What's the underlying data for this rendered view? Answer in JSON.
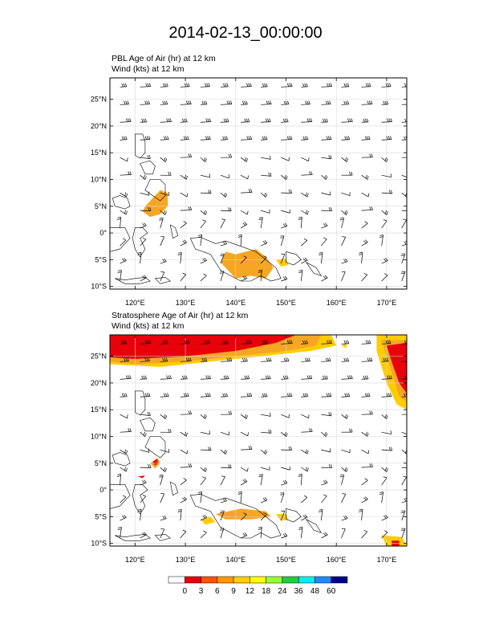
{
  "page": {
    "title": "2014-02-13_00:00:00"
  },
  "chart_data": [
    {
      "type": "heatmap",
      "title_line1": "PBL Age of Air   (hr)     at   12 km",
      "title_line2": "Wind    (kts)     at   12 km",
      "xlim": [
        115,
        174
      ],
      "ylim": [
        -10.5,
        29
      ],
      "x_ticks": [
        {
          "value": 120,
          "label": "120°E"
        },
        {
          "value": 130,
          "label": "130°E"
        },
        {
          "value": 140,
          "label": "140°E"
        },
        {
          "value": 150,
          "label": "150°E"
        },
        {
          "value": 160,
          "label": "160°E"
        },
        {
          "value": 170,
          "label": "170°E"
        }
      ],
      "y_ticks": [
        {
          "value": 25,
          "label": "25°N"
        },
        {
          "value": 20,
          "label": "20°N"
        },
        {
          "value": 15,
          "label": "15°N"
        },
        {
          "value": 10,
          "label": "10°N"
        },
        {
          "value": 5,
          "label": "5°N"
        },
        {
          "value": 0,
          "label": "0°"
        },
        {
          "value": -5,
          "label": "5°S"
        },
        {
          "value": -10,
          "label": "10°S"
        }
      ],
      "regions": [
        {
          "name": "philippines-shading",
          "color": "#f5a623",
          "points": [
            [
              122,
              5
            ],
            [
              123.5,
              6.5
            ],
            [
              125,
              8
            ],
            [
              126.5,
              7.5
            ],
            [
              126.5,
              5
            ],
            [
              125,
              3.5
            ],
            [
              123,
              3
            ],
            [
              121.5,
              4
            ]
          ]
        },
        {
          "name": "new-guinea-shading",
          "color": "#f5a623",
          "points": [
            [
              138,
              -3.5
            ],
            [
              140,
              -4
            ],
            [
              142,
              -3.5
            ],
            [
              144,
              -3
            ],
            [
              146,
              -4.5
            ],
            [
              147.5,
              -6.5
            ],
            [
              146,
              -8.5
            ],
            [
              143,
              -8
            ],
            [
              140,
              -8.5
            ],
            [
              138.5,
              -7
            ],
            [
              137,
              -5.5
            ]
          ]
        },
        {
          "name": "bismarck-shading",
          "color": "#ffcc00",
          "points": [
            [
              148,
              -5
            ],
            [
              150,
              -4.8
            ],
            [
              150.5,
              -6
            ],
            [
              149,
              -6.3
            ]
          ]
        }
      ]
    },
    {
      "type": "heatmap",
      "title_line1": "Stratosphere Age of Air   (hr)     at   12 km",
      "title_line2": "Wind    (kts)     at   12 km",
      "xlim": [
        115,
        174
      ],
      "ylim": [
        -10.5,
        29
      ],
      "x_ticks": [
        {
          "value": 120,
          "label": "120°E"
        },
        {
          "value": 130,
          "label": "130°E"
        },
        {
          "value": 140,
          "label": "140°E"
        },
        {
          "value": 150,
          "label": "150°E"
        },
        {
          "value": 160,
          "label": "160°E"
        },
        {
          "value": 170,
          "label": "170°E"
        }
      ],
      "y_ticks": [
        {
          "value": 25,
          "label": "25°N"
        },
        {
          "value": 20,
          "label": "20°N"
        },
        {
          "value": 15,
          "label": "15°N"
        },
        {
          "value": 10,
          "label": "10°N"
        },
        {
          "value": 5,
          "label": "5°N"
        },
        {
          "value": 0,
          "label": "0°"
        },
        {
          "value": -5,
          "label": "5°S"
        },
        {
          "value": -10,
          "label": "10°S"
        }
      ],
      "regions": [
        {
          "name": "jet-yellow-band",
          "color": "#ffcc00",
          "points": [
            [
              115,
              29
            ],
            [
              159,
              29
            ],
            [
              160,
              27
            ],
            [
              155,
              26
            ],
            [
              145,
              25
            ],
            [
              135,
              24
            ],
            [
              125,
              23
            ],
            [
              115,
              23.5
            ]
          ]
        },
        {
          "name": "jet-orange-band",
          "color": "#f5a623",
          "points": [
            [
              115,
              29
            ],
            [
              157,
              29
            ],
            [
              156,
              27
            ],
            [
              150,
              26
            ],
            [
              140,
              25
            ],
            [
              130,
              24
            ],
            [
              120,
              23.5
            ],
            [
              115,
              24
            ]
          ]
        },
        {
          "name": "jet-red-core",
          "color": "#e8000b",
          "points": [
            [
              115,
              29
            ],
            [
              152,
              29
            ],
            [
              148,
              27.5
            ],
            [
              140,
              26
            ],
            [
              130,
              25
            ],
            [
              120,
              24.5
            ],
            [
              115,
              24.8
            ]
          ]
        },
        {
          "name": "east-yellow-band",
          "color": "#ffcc00",
          "points": [
            [
              168,
              29
            ],
            [
              174,
              29
            ],
            [
              174,
              15
            ],
            [
              172,
              16
            ],
            [
              170,
              20
            ],
            [
              168,
              26
            ]
          ]
        },
        {
          "name": "east-orange-band",
          "color": "#f5a623",
          "points": [
            [
              169,
              28
            ],
            [
              174,
              28
            ],
            [
              174,
              16.5
            ],
            [
              172.5,
              17.5
            ],
            [
              171,
              22
            ]
          ]
        },
        {
          "name": "east-red-core",
          "color": "#e8000b",
          "points": [
            [
              170,
              27
            ],
            [
              174,
              27.5
            ],
            [
              174,
              18
            ],
            [
              172.5,
              20
            ],
            [
              171,
              24
            ]
          ]
        },
        {
          "name": "north-yellow-spot",
          "color": "#ffcc00",
          "points": [
            [
              161,
              27
            ],
            [
              162,
              27.5
            ],
            [
              162,
              26.5
            ]
          ]
        },
        {
          "name": "philippines-orange",
          "color": "#f5a623",
          "points": [
            [
              123,
              5
            ],
            [
              124.5,
              6
            ],
            [
              125,
              5
            ],
            [
              124,
              4
            ]
          ]
        },
        {
          "name": "philippines-red",
          "color": "#e8000b",
          "points": [
            [
              123.5,
              5.2
            ],
            [
              124.3,
              5.8
            ],
            [
              124.6,
              5
            ],
            [
              124,
              4.6
            ]
          ]
        },
        {
          "name": "mindanao-red-dot",
          "color": "#e8000b",
          "points": [
            [
              120.5,
              2.5
            ],
            [
              122,
              2.7
            ],
            [
              121.5,
              2.2
            ]
          ]
        },
        {
          "name": "new-guinea-orange",
          "color": "#f5a623",
          "points": [
            [
              136,
              -4.5
            ],
            [
              141,
              -3.5
            ],
            [
              146,
              -4
            ],
            [
              147,
              -5
            ],
            [
              143,
              -5.5
            ],
            [
              138,
              -5.5
            ]
          ]
        },
        {
          "name": "new-guinea-yellow",
          "color": "#ffcc00",
          "points": [
            [
              133,
              -5.5
            ],
            [
              135,
              -5
            ],
            [
              136,
              -6
            ],
            [
              134,
              -6.5
            ]
          ]
        },
        {
          "name": "bismarck-yellow",
          "color": "#ffcc00",
          "points": [
            [
              148,
              -4.5
            ],
            [
              150,
              -4.5
            ],
            [
              150.5,
              -5.5
            ],
            [
              149,
              -5.8
            ]
          ]
        },
        {
          "name": "southeast-yellow",
          "color": "#ffcc00",
          "points": [
            [
              169,
              -8.5
            ],
            [
              173,
              -8.8
            ],
            [
              174,
              -10.5
            ],
            [
              170,
              -10.5
            ]
          ]
        },
        {
          "name": "southeast-red",
          "color": "#e8000b",
          "points": [
            [
              171,
              -9.5
            ],
            [
              172.5,
              -9.5
            ],
            [
              172.5,
              -10.5
            ],
            [
              171,
              -10.5
            ]
          ]
        }
      ]
    }
  ],
  "colorbar": {
    "labels": [
      "0",
      "3",
      "6",
      "9",
      "12",
      "18",
      "24",
      "36",
      "48",
      "60"
    ],
    "colors": [
      "#ffffff",
      "#e8000b",
      "#ff5500",
      "#ff9900",
      "#ffcc00",
      "#ffff00",
      "#99ff33",
      "#22cc44",
      "#00eeee",
      "#2288ff",
      "#000088"
    ]
  }
}
